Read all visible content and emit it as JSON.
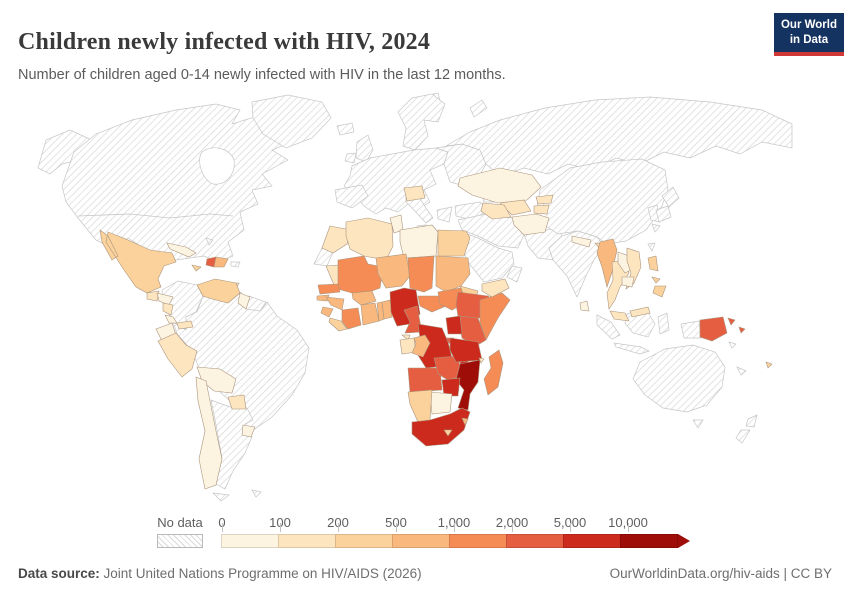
{
  "header": {
    "title": "Children newly infected with HIV, 2024",
    "subtitle": "Number of children aged 0-14 newly infected with HIV in the last 12 months.",
    "logo": {
      "line1": "Our World",
      "line2": "in Data",
      "bg_color": "#153360",
      "accent_color": "#cf3834"
    }
  },
  "legend": {
    "no_data_label": "No data",
    "tick_labels": [
      "0",
      "100",
      "200",
      "500",
      "1,000",
      "2,000",
      "5,000",
      "10,000"
    ]
  },
  "footer": {
    "source_label": "Data source:",
    "source_text": " Joint United Nations Programme on HIV/AIDS (2026)",
    "right_text": "OurWorldinData.org/hiv-aids | CC BY"
  },
  "chart_data": {
    "type": "heatmap",
    "subtype": "choropleth-world-map",
    "title": "Children newly infected with HIV, 2024",
    "measure": "Number of children aged 0-14 newly infected with HIV in the last 12 months",
    "year": 2024,
    "legend_position": "bottom",
    "bins": [
      "0-100",
      "100-200",
      "200-500",
      "500-1,000",
      "1,000-2,000",
      "2,000-5,000",
      "5,000-10,000",
      "10,000+"
    ],
    "bin_colors": [
      "#fdf3e1",
      "#fde5c0",
      "#fcd29c",
      "#f9b97e",
      "#f58c56",
      "#e65e42",
      "#cb2a1d",
      "#9e0d08"
    ],
    "no_data_style": "diagonal-hatch",
    "country_bins": {
      "Mexico": 2,
      "Guatemala": 1,
      "Honduras": 0,
      "Nicaragua": 1,
      "Costa Rica": 0,
      "Panama": 1,
      "Cuba": 0,
      "Jamaica": 2,
      "Haiti": 5,
      "Dominican Republic": 3,
      "Trinidad and Tobago": 1,
      "Venezuela": 2,
      "Guyana": 0,
      "Ecuador": 0,
      "Peru": 1,
      "Bolivia": 0,
      "Paraguay": 1,
      "Uruguay": 0,
      "Chile": 0,
      "Morocco": 1,
      "Algeria": 1,
      "Tunisia": 0,
      "Libya": 0,
      "Egypt": 2,
      "Mauritania": 1,
      "Mali": 4,
      "Niger": 3,
      "Chad": 4,
      "Sudan": 3,
      "Eritrea": 2,
      "Djibouti": 2,
      "Senegal": 4,
      "Guinea-Bissau": 3,
      "Guinea": 3,
      "Sierra Leone": 3,
      "Liberia": 2,
      "Cote d'Ivoire": 4,
      "Burkina Faso": 3,
      "Ghana": 3,
      "Togo": 3,
      "Benin": 3,
      "Nigeria": 6,
      "Cameroon": 5,
      "Central African Republic": 4,
      "South Sudan": 4,
      "Ethiopia": 5,
      "Somalia": 4,
      "Kenya": 5,
      "Uganda": 6,
      "Rwanda": 5,
      "Burundi": 5,
      "Democratic Republic of Congo": 6,
      "Gabon": 1,
      "Congo": 3,
      "Equatorial Guinea": 1,
      "Angola": 5,
      "Zambia": 5,
      "Malawi": 6,
      "Tanzania": 6,
      "Mozambique": 7,
      "Zimbabwe": 6,
      "Botswana": 0,
      "Namibia": 2,
      "South Africa": 6,
      "Lesotho": 2,
      "Eswatini": 3,
      "Madagascar": 4,
      "Comoros": 1,
      "Romania": 1,
      "Kazakhstan": 0,
      "Uzbekistan": 1,
      "Turkmenistan": 1,
      "Kyrgyzstan": 1,
      "Tajikistan": 1,
      "Afghanistan": 0,
      "Nepal": 0,
      "Bhutan": 1,
      "Bangladesh": 1,
      "Sri Lanka": 0,
      "Myanmar": 3,
      "Thailand": 1,
      "Laos": 0,
      "Vietnam": 1,
      "Cambodia": 0,
      "Malaysia": 1,
      "Philippines": 2,
      "Papua New Guinea": 5,
      "Fiji": 2,
      "Yemen": 1
    }
  }
}
